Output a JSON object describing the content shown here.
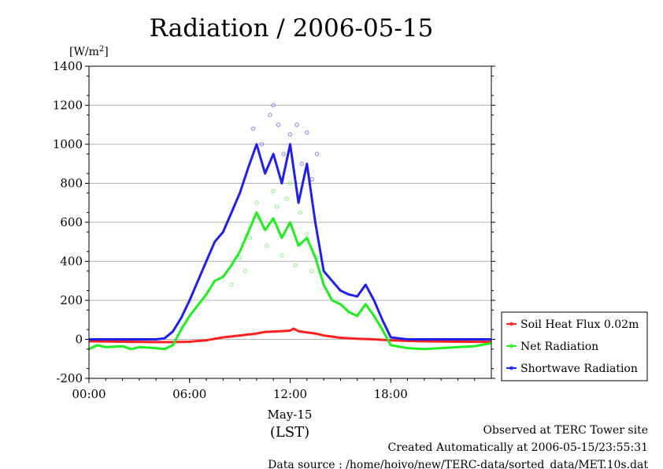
{
  "chart_data": {
    "type": "line",
    "title": "Radiation / 2006-05-15",
    "ylabel_base": "[W/m",
    "ylabel_sup": "2",
    "ylabel_end": "]",
    "ylim": [
      -200,
      1400
    ],
    "yticks": [
      -200,
      0,
      200,
      400,
      600,
      800,
      1000,
      1200,
      1400
    ],
    "xlim": [
      0,
      24
    ],
    "xticks": [
      {
        "value": 0,
        "label": "00:00"
      },
      {
        "value": 6,
        "label": "06:00"
      },
      {
        "value": 12,
        "label": "12:00"
      },
      {
        "value": 18,
        "label": "18:00"
      }
    ],
    "xlabel_date": "May-15",
    "xlabel": "(LST)",
    "grid": "horizontal",
    "legend_placement": "lower-right outside",
    "series": [
      {
        "name": "Soil Heat Flux 0.02m",
        "color": "#ff2020",
        "x": [
          0,
          2,
          4,
          5,
          6,
          7,
          8,
          9,
          10,
          10.5,
          11,
          11.5,
          12,
          12.2,
          12.5,
          13,
          13.5,
          14,
          15,
          16,
          17,
          18,
          19,
          20,
          22,
          24
        ],
        "y": [
          -10,
          -12,
          -14,
          -14,
          -12,
          -5,
          10,
          20,
          30,
          38,
          40,
          42,
          45,
          55,
          42,
          35,
          30,
          20,
          8,
          3,
          0,
          -5,
          -8,
          -10,
          -12,
          -13
        ]
      },
      {
        "name": "Net Radiation",
        "color": "#20ee20",
        "x": [
          0,
          0.5,
          1,
          2,
          2.5,
          3,
          4,
          4.5,
          5,
          5.5,
          6,
          7,
          7.5,
          8,
          8.5,
          9,
          9.5,
          10,
          10.5,
          11,
          11.5,
          12,
          12.5,
          13,
          13.5,
          14,
          14.5,
          15,
          15.5,
          16,
          16.5,
          17,
          17.5,
          18,
          19,
          20,
          21,
          22,
          23,
          24
        ],
        "y": [
          -50,
          -30,
          -40,
          -35,
          -50,
          -40,
          -45,
          -50,
          -30,
          50,
          120,
          230,
          300,
          320,
          380,
          450,
          550,
          650,
          560,
          620,
          520,
          600,
          480,
          520,
          420,
          280,
          200,
          180,
          140,
          120,
          180,
          120,
          50,
          -30,
          -45,
          -50,
          -45,
          -40,
          -35,
          -20
        ],
        "scatter_x": [
          8.5,
          9,
          9.3,
          9.6,
          10,
          10.2,
          10.6,
          11,
          11.2,
          11.5,
          11.8,
          12,
          12.3,
          12.6,
          13,
          13.3,
          13.6
        ],
        "scatter_y": [
          280,
          420,
          350,
          520,
          700,
          620,
          480,
          760,
          680,
          430,
          720,
          800,
          380,
          650,
          540,
          350,
          420
        ]
      },
      {
        "name": "Shortwave Radiation",
        "color": "#2020ee",
        "x": [
          0,
          2,
          4,
          4.5,
          5,
          5.5,
          6,
          7,
          7.5,
          8,
          8.5,
          9,
          9.5,
          10,
          10.5,
          11,
          11.5,
          12,
          12.5,
          13,
          13.5,
          14,
          14.5,
          15,
          15.5,
          16,
          16.5,
          17,
          17.5,
          18,
          19,
          20,
          22,
          24
        ],
        "y": [
          0,
          0,
          0,
          5,
          40,
          110,
          200,
          400,
          500,
          550,
          650,
          750,
          880,
          1000,
          850,
          950,
          800,
          1000,
          700,
          900,
          600,
          350,
          300,
          250,
          230,
          220,
          280,
          200,
          100,
          10,
          0,
          0,
          0,
          0
        ],
        "scatter_x": [
          9.8,
          10.3,
          10.8,
          11,
          11.3,
          11.6,
          12,
          12.4,
          12.7,
          13,
          13.3,
          13.6
        ],
        "scatter_y": [
          1080,
          1000,
          1150,
          1200,
          1100,
          950,
          1050,
          1100,
          900,
          1060,
          820,
          950
        ]
      }
    ]
  },
  "footer": {
    "line1": "Observed at TERC Tower site",
    "line2": "Created Automatically at 2006-05-15/23:55:31",
    "line3": "Data source : /home/hoivo/new/TERC-data/sorted_data/MET.10s.dat"
  }
}
